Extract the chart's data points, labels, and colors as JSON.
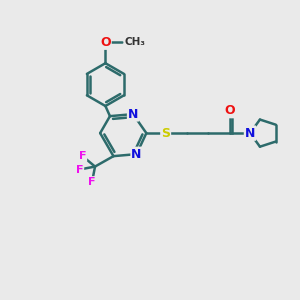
{
  "background_color": "#eaeaea",
  "bond_color": "#2d6b6b",
  "bond_width": 1.8,
  "atom_colors": {
    "N": "#1010dd",
    "O": "#ee1111",
    "S": "#cccc00",
    "F": "#ee11ee",
    "C": "#000000"
  },
  "font_size": 9,
  "figsize": [
    3.0,
    3.0
  ],
  "dpi": 100
}
